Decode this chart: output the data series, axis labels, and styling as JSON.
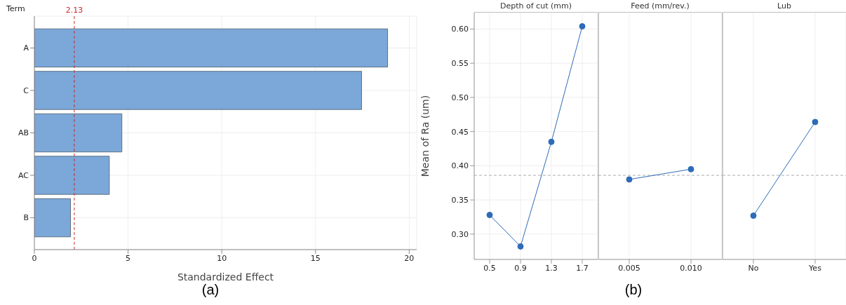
{
  "chart_data": [
    {
      "type": "bar",
      "orientation": "horizontal",
      "ylabel": "Term",
      "xlabel": "Standardized Effect",
      "categories": [
        "A",
        "C",
        "AB",
        "AC",
        "B"
      ],
      "values": [
        18.85,
        17.46,
        4.67,
        4.0,
        1.93
      ],
      "color": "#7ba7d9",
      "xlim": [
        0,
        20.4
      ],
      "xticks": [
        0,
        5,
        10,
        15,
        20
      ],
      "grid": true,
      "ref_lines": [
        {
          "axis": "x",
          "value": 2.13,
          "label": "2.13",
          "color": "#cc2a2a",
          "line_style": "dashed"
        }
      ],
      "annotations": [
        "(a)"
      ]
    },
    {
      "type": "line",
      "title": "Depth of cut (mm)",
      "ylabel": "Mean of Ra (um)",
      "categories": [
        "0.5",
        "0.9",
        "1.3",
        "1.7"
      ],
      "values": [
        0.328,
        0.282,
        0.435,
        0.604
      ],
      "color": "#2e6bb8",
      "marker": "circle",
      "grid": true,
      "ylim": [
        0.263,
        0.624
      ],
      "yticks": [
        {
          "value": 0.3,
          "label": "0.30"
        },
        {
          "value": 0.35,
          "label": "0.35"
        },
        {
          "value": 0.4,
          "label": "0.40"
        },
        {
          "value": 0.45,
          "label": "0.45"
        },
        {
          "value": 0.5,
          "label": "0.50"
        },
        {
          "value": 0.55,
          "label": "0.55"
        },
        {
          "value": 0.6,
          "label": "0.60"
        }
      ],
      "ref_lines": [
        {
          "axis": "y",
          "value": 0.386,
          "color": "#aaaaaa",
          "line_style": "dashed"
        }
      ],
      "annotations": [
        "(b)"
      ]
    },
    {
      "type": "line",
      "title": "Feed (mm/rev.)",
      "categories": [
        "0.005",
        "0.010"
      ],
      "values": [
        0.38,
        0.395
      ],
      "color": "#2e6bb8",
      "marker": "circle",
      "grid": true,
      "ylim": [
        0.263,
        0.624
      ],
      "tick_labels": "x",
      "ref_lines": [
        {
          "axis": "y",
          "value": 0.386,
          "color": "#aaaaaa",
          "line_style": "dashed"
        }
      ]
    },
    {
      "type": "line",
      "title": "Lub",
      "categories": [
        "No",
        "Yes"
      ],
      "values": [
        0.327,
        0.464
      ],
      "color": "#2e6bb8",
      "marker": "circle",
      "grid": true,
      "ylim": [
        0.263,
        0.624
      ],
      "tick_labels": "x",
      "ref_lines": [
        {
          "axis": "y",
          "value": 0.386,
          "color": "#aaaaaa",
          "line_style": "dashed"
        }
      ]
    }
  ]
}
